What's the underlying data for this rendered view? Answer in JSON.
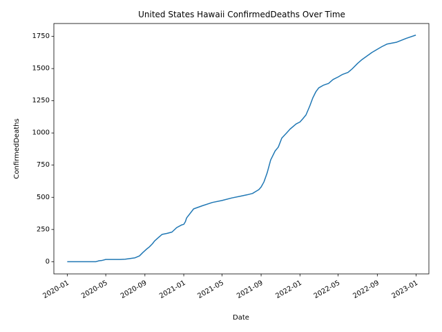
{
  "chart_data": {
    "type": "line",
    "title": "United States Hawaii ConfirmedDeaths Over Time",
    "xlabel": "Date",
    "ylabel": "ConfirmedDeaths",
    "x_ticks": [
      "2020-01",
      "2020-05",
      "2020-09",
      "2021-01",
      "2021-05",
      "2021-09",
      "2022-01",
      "2022-05",
      "2022-09",
      "2023-01"
    ],
    "y_ticks": [
      0,
      250,
      500,
      750,
      1000,
      1250,
      1500,
      1750
    ],
    "xlim": [
      "2019-11-20",
      "2023-02-10"
    ],
    "ylim": [
      -95,
      1850
    ],
    "grid": false,
    "color": "#1f77b4",
    "series": [
      {
        "x": [
          "2020-01-01",
          "2020-03-31",
          "2020-04-10",
          "2020-04-20",
          "2020-05-01",
          "2020-06-15",
          "2020-07-01",
          "2020-07-15",
          "2020-08-01",
          "2020-08-15",
          "2020-08-25",
          "2020-09-05",
          "2020-09-15",
          "2020-09-25",
          "2020-10-01",
          "2020-10-10",
          "2020-10-25",
          "2020-11-10",
          "2020-11-25",
          "2020-12-10",
          "2020-12-25",
          "2021-01-01",
          "2021-01-06",
          "2021-01-10",
          "2021-02-01",
          "2021-03-01",
          "2021-04-01",
          "2021-05-01",
          "2021-06-01",
          "2021-07-01",
          "2021-07-20",
          "2021-08-05",
          "2021-08-15",
          "2021-08-25",
          "2021-09-01",
          "2021-09-10",
          "2021-09-20",
          "2021-10-01",
          "2021-10-15",
          "2021-10-25",
          "2021-11-05",
          "2021-11-20",
          "2021-12-01",
          "2021-12-20",
          "2022-01-01",
          "2022-01-10",
          "2022-01-20",
          "2022-02-01",
          "2022-02-10",
          "2022-02-20",
          "2022-03-01",
          "2022-03-15",
          "2022-04-01",
          "2022-04-15",
          "2022-05-01",
          "2022-05-15",
          "2022-06-01",
          "2022-06-15",
          "2022-07-01",
          "2022-07-15",
          "2022-08-01",
          "2022-08-15",
          "2022-09-01",
          "2022-09-15",
          "2022-10-01",
          "2022-11-01",
          "2022-12-01",
          "2022-12-31"
        ],
        "values": [
          0,
          0,
          7,
          10,
          17,
          17,
          19,
          24,
          30,
          45,
          70,
          95,
          115,
          140,
          160,
          180,
          212,
          220,
          230,
          265,
          285,
          290,
          310,
          340,
          410,
          435,
          460,
          475,
          495,
          510,
          520,
          530,
          545,
          560,
          580,
          620,
          690,
          790,
          860,
          890,
          960,
          1000,
          1030,
          1070,
          1085,
          1110,
          1140,
          1210,
          1270,
          1320,
          1350,
          1370,
          1385,
          1415,
          1435,
          1455,
          1470,
          1500,
          1540,
          1570,
          1600,
          1625,
          1650,
          1670,
          1690,
          1705,
          1735,
          1760
        ]
      }
    ]
  }
}
